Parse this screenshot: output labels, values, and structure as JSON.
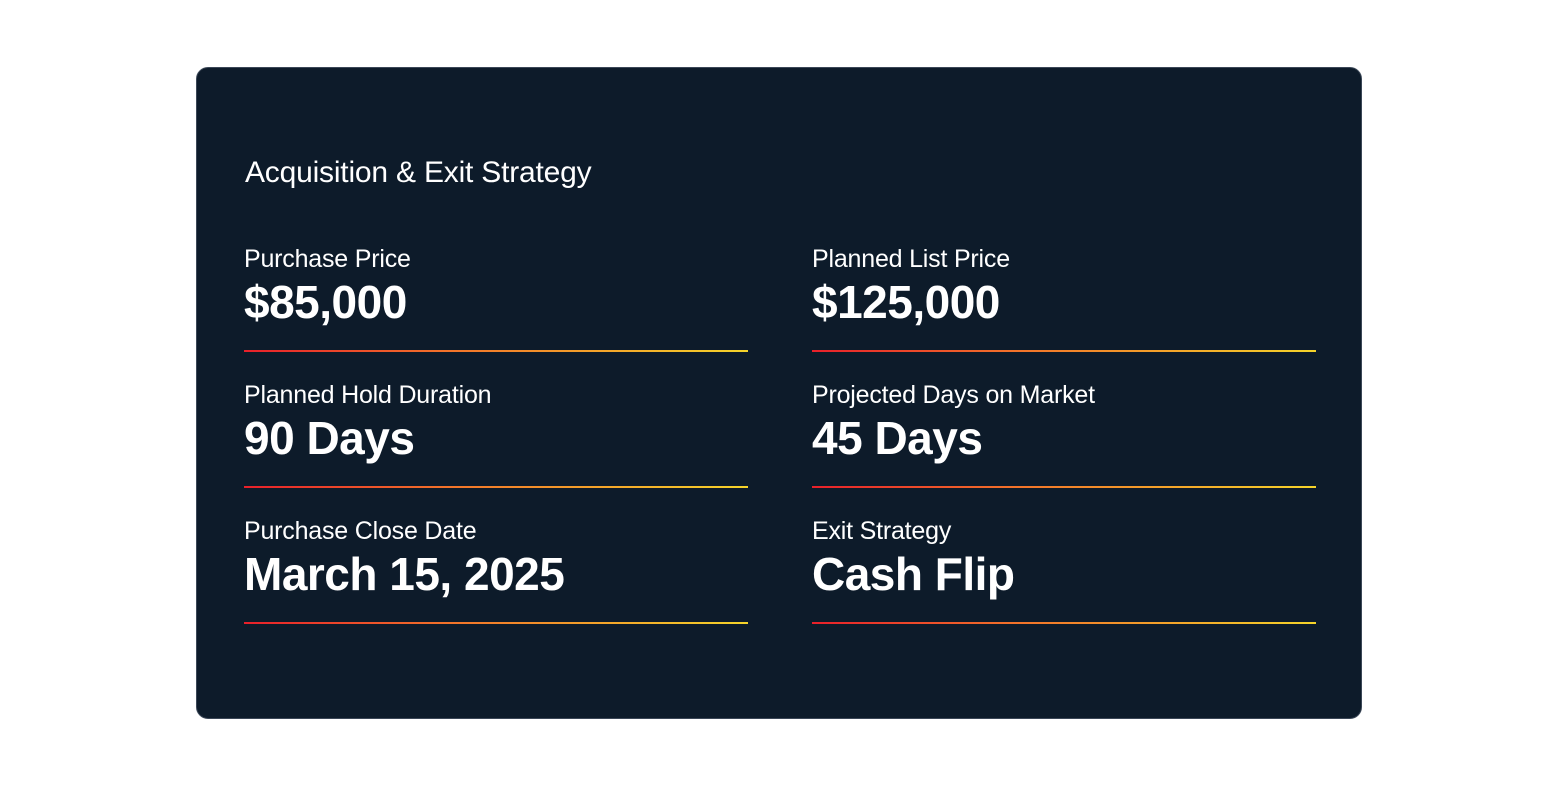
{
  "card": {
    "title": "Acquisition & Exit Strategy",
    "fields": [
      {
        "label": "Purchase Price",
        "value": "$85,000"
      },
      {
        "label": "Planned List Price",
        "value": "$125,000"
      },
      {
        "label": "Planned Hold Duration",
        "value": "90 Days"
      },
      {
        "label": "Projected Days on Market",
        "value": "45 Days"
      },
      {
        "label": "Purchase Close Date",
        "value": "March 15, 2025"
      },
      {
        "label": "Exit Strategy",
        "value": "Cash Flip"
      }
    ]
  },
  "colors": {
    "background": "#0d1b2a",
    "rule_start": "#e8202a",
    "rule_end": "#f5d42a"
  }
}
